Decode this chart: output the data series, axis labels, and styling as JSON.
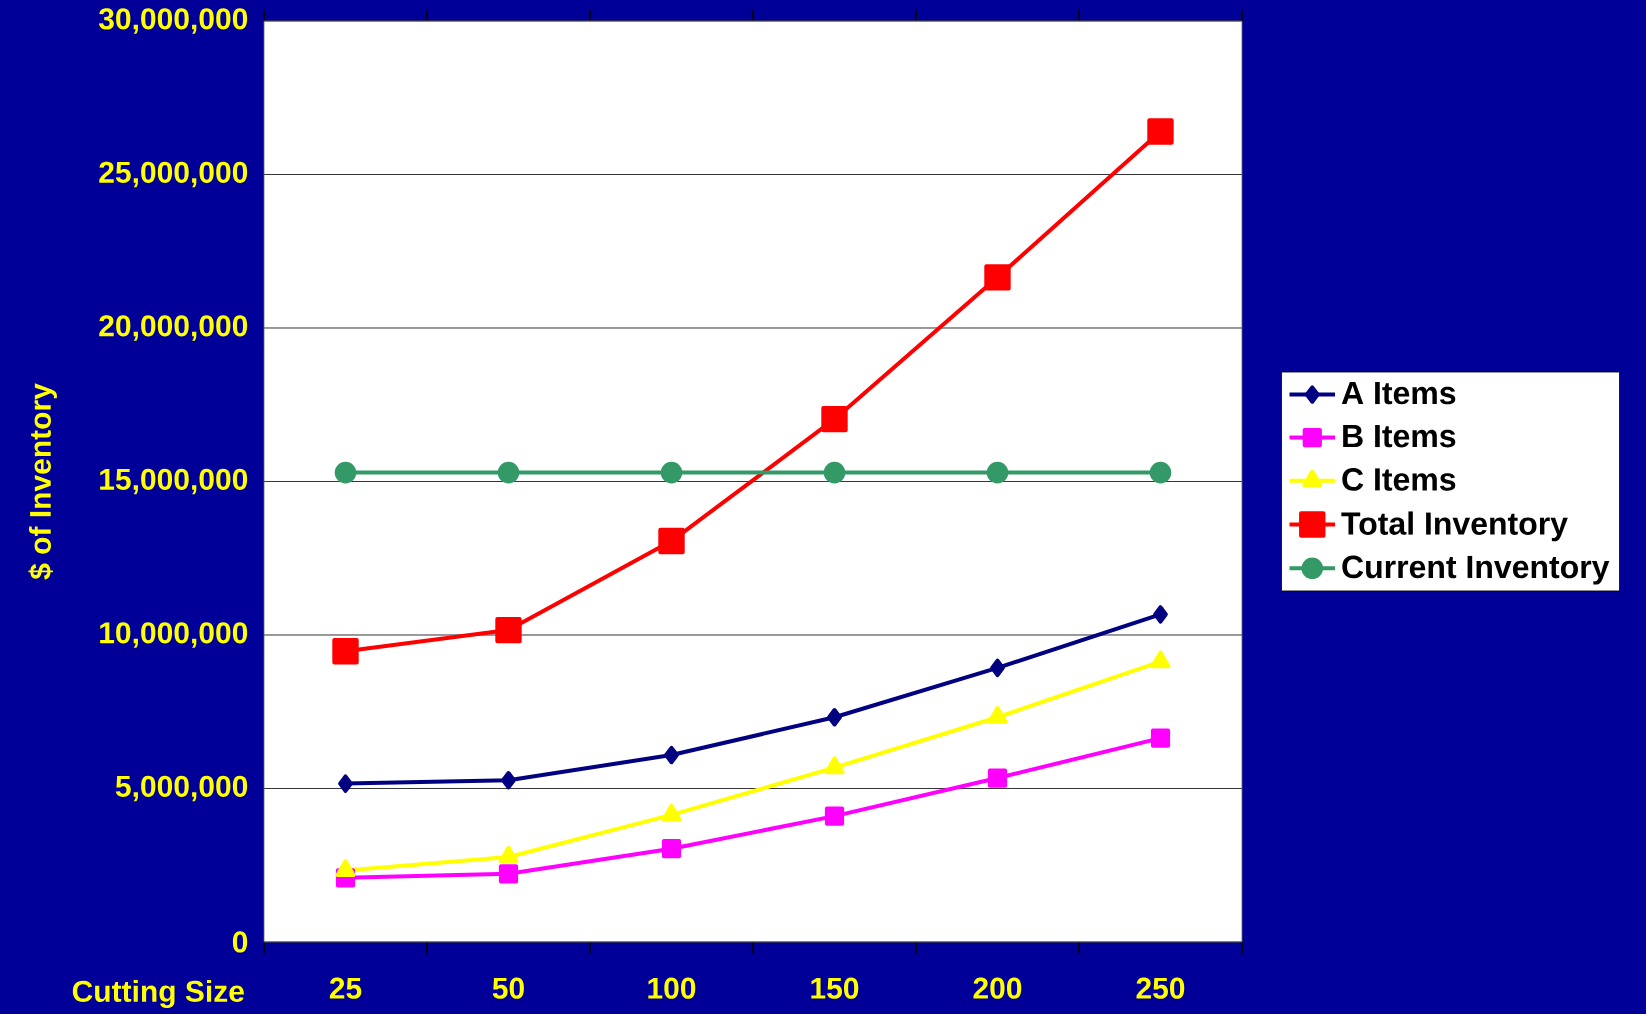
{
  "chart_data": {
    "type": "line",
    "xlabel": "Cutting Size",
    "ylabel": "$ of Inventory",
    "categories": [
      "25",
      "50",
      "100",
      "150",
      "200",
      "250"
    ],
    "series": [
      {
        "name": "A Items",
        "color": "#000080",
        "marker": "diamond",
        "values": [
          5160000,
          5270000,
          6090000,
          7320000,
          8930000,
          10670000
        ]
      },
      {
        "name": "B Items",
        "color": "#ff00ff",
        "marker": "square",
        "values": [
          2090000,
          2220000,
          3040000,
          4100000,
          5340000,
          6640000
        ]
      },
      {
        "name": "C Items",
        "color": "#ffff00",
        "marker": "triangle",
        "values": [
          2330000,
          2770000,
          4140000,
          5680000,
          7320000,
          9130000
        ]
      },
      {
        "name": "Total Inventory",
        "color": "#ff0000",
        "marker": "square",
        "values": [
          9470000,
          10160000,
          13060000,
          17030000,
          21650000,
          26400000
        ]
      },
      {
        "name": "Current Inventory",
        "color": "#339966",
        "marker": "circle",
        "values": [
          15290000,
          15290000,
          15290000,
          15290000,
          15290000,
          15290000
        ]
      }
    ],
    "ylim": [
      0,
      30000000
    ],
    "yticks": [
      0,
      {
        "value": 5000000,
        "label": "5,000,000"
      },
      {
        "value": 10000000,
        "label": "10,000,000"
      },
      {
        "value": 15000000,
        "label": "15,000,000"
      },
      {
        "value": 20000000,
        "label": "20,000,000"
      },
      {
        "value": 25000000,
        "label": "25,000,000"
      },
      {
        "value": 30000000,
        "label": "30,000,000"
      }
    ],
    "grid": "y",
    "legend": "right",
    "line_style": "solid"
  }
}
